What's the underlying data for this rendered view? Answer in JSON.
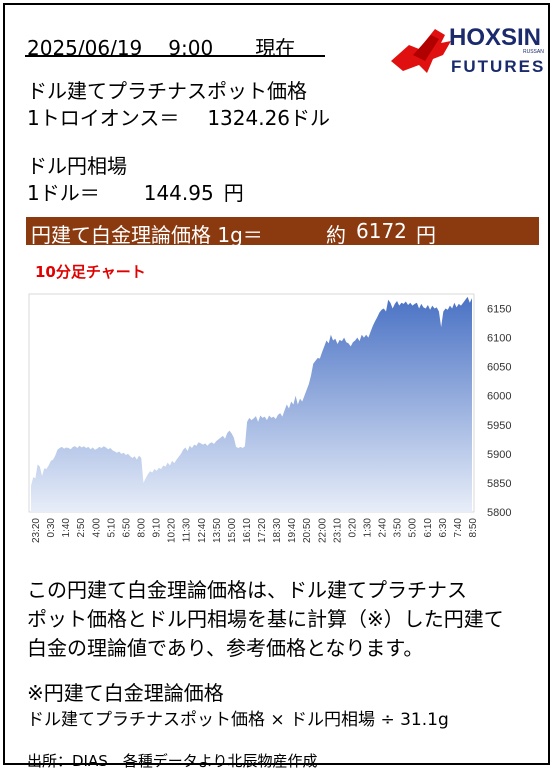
{
  "header": {
    "date": "2025/06/19",
    "time": "9:00",
    "suffix": "現在",
    "logo_text_main": "HOXSIN",
    "logo_text_sub": "FUTURES",
    "logo_text_small": "RUSSAN"
  },
  "platinum": {
    "label": "ドル建てプラチナスポット価格",
    "unit_label": "1トロイオンス＝",
    "value": "1324.26",
    "currency": "ドル"
  },
  "fx": {
    "label": "ドル円相場",
    "unit_label": "1ドル＝",
    "value": "144.95",
    "currency": "円"
  },
  "theory_price": {
    "label": "円建て白金理論価格 1g＝",
    "approx": "約",
    "value": "6172",
    "currency": "円"
  },
  "chart_data": {
    "title": "10分足チャート",
    "type": "area",
    "ylim": [
      5800,
      6175
    ],
    "yticks": [
      5800,
      5850,
      5900,
      5950,
      6000,
      6050,
      6100,
      6150
    ],
    "tick_labels": [
      "23:20",
      "0:30",
      "1:40",
      "2:50",
      "4:00",
      "5:10",
      "6:50",
      "8:00",
      "9:10",
      "10:20",
      "11:30",
      "12:40",
      "13:50",
      "15:00",
      "16:10",
      "17:20",
      "18:30",
      "19:40",
      "20:50",
      "22:00",
      "23:10",
      "0:20",
      "1:30",
      "2:40",
      "3:50",
      "5:00",
      "6:10",
      "6:30",
      "7:40",
      "8:50"
    ],
    "values": [
      5845,
      5860,
      5858,
      5882,
      5878,
      5862,
      5875,
      5874,
      5880,
      5888,
      5890,
      5897,
      5907,
      5910,
      5912,
      5909,
      5911,
      5910,
      5908,
      5912,
      5913,
      5910,
      5914,
      5911,
      5913,
      5910,
      5912,
      5908,
      5911,
      5907,
      5909,
      5912,
      5910,
      5913,
      5911,
      5908,
      5910,
      5906,
      5904,
      5902,
      5904,
      5900,
      5902,
      5898,
      5900,
      5896,
      5893,
      5896,
      5890,
      5897,
      5893,
      5850,
      5858,
      5865,
      5870,
      5868,
      5874,
      5871,
      5876,
      5874,
      5880,
      5878,
      5885,
      5880,
      5888,
      5884,
      5890,
      5895,
      5900,
      5907,
      5911,
      5905,
      5914,
      5910,
      5916,
      5914,
      5920,
      5918,
      5916,
      5918,
      5914,
      5918,
      5920,
      5917,
      5922,
      5925,
      5928,
      5931,
      5926,
      5936,
      5940,
      5935,
      5928,
      5912,
      5910,
      5912,
      5910,
      5913,
      5955,
      5962,
      5958,
      5961,
      5965,
      5955,
      5966,
      5962,
      5964,
      5958,
      5966,
      5962,
      5964,
      5960,
      5967,
      5970,
      5964,
      5975,
      5985,
      5978,
      5990,
      5985,
      6000,
      5985,
      5995,
      5990,
      6000,
      6010,
      6020,
      6035,
      6055,
      6060,
      6065,
      6064,
      6075,
      6085,
      6095,
      6090,
      6105,
      6095,
      6098,
      6089,
      6096,
      6094,
      6100,
      6092,
      6090,
      6085,
      6092,
      6095,
      6100,
      6094,
      6105,
      6100,
      6105,
      6100,
      6110,
      6120,
      6128,
      6135,
      6143,
      6148,
      6150,
      6145,
      6165,
      6160,
      6150,
      6158,
      6163,
      6155,
      6160,
      6158,
      6162,
      6156,
      6160,
      6155,
      6158,
      6160,
      6150,
      6158,
      6152,
      6150,
      6156,
      6148,
      6155,
      6150,
      6152,
      6145,
      6118,
      6145,
      6150,
      6148,
      6155,
      6150,
      6160,
      6152,
      6158,
      6155,
      6160,
      6165,
      6170,
      6160,
      6168
    ]
  },
  "body": {
    "line1": "この円建て白金理論価格は、ドル建てプラチナス",
    "line2": "ポット価格とドル円相場を基に計算（※）した円建て",
    "line3": "白金の理論値であり、参考価格となります。"
  },
  "note": {
    "title": "※円建て白金理論価格",
    "formula": "ドル建てプラチナスポット価格 × ドル円相場 ÷ 31.1g"
  },
  "source": "出所：DIAS　各種データより北辰物産作成",
  "colors": {
    "band_bg": "#8b3a10",
    "chart_title": "#e00000",
    "area_top": "#4a72c4",
    "area_bottom": "#e8eef9",
    "logo_red": "#e01010",
    "logo_navy": "#1a2a6c"
  }
}
